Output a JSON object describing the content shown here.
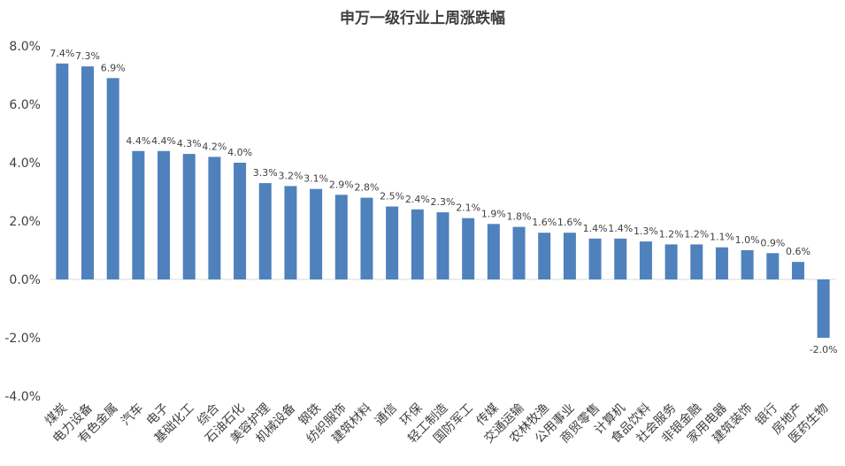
{
  "chart_data": {
    "type": "bar",
    "title": "申万一级行业上周涨跌幅",
    "xlabel": "",
    "ylabel": "",
    "ylim": [
      -4.0,
      8.0
    ],
    "y_ticks": [
      "8.0%",
      "6.0%",
      "4.0%",
      "2.0%",
      "0.0%",
      "-2.0%",
      "-4.0%"
    ],
    "y_tick_values": [
      8,
      6,
      4,
      2,
      0,
      -2,
      -4
    ],
    "grid": false,
    "legend": "none",
    "bar_color": "#4f81bd",
    "categories": [
      "煤炭",
      "电力设备",
      "有色金属",
      "汽车",
      "电子",
      "基础化工",
      "综合",
      "石油石化",
      "美容护理",
      "机械设备",
      "钢铁",
      "纺织服饰",
      "建筑材料",
      "通信",
      "环保",
      "轻工制造",
      "国防军工",
      "传媒",
      "交通运输",
      "农林牧渔",
      "公用事业",
      "商贸零售",
      "计算机",
      "食品饮料",
      "社会服务",
      "非银金融",
      "家用电器",
      "建筑装饰",
      "银行",
      "房地产",
      "医药生物"
    ],
    "values": [
      7.4,
      7.3,
      6.9,
      4.4,
      4.4,
      4.3,
      4.2,
      4.0,
      3.3,
      3.2,
      3.1,
      2.9,
      2.8,
      2.5,
      2.4,
      2.3,
      2.1,
      1.9,
      1.8,
      1.6,
      1.6,
      1.4,
      1.4,
      1.3,
      1.2,
      1.2,
      1.1,
      1.0,
      0.9,
      0.6,
      -2.0
    ],
    "data_labels": [
      "7.4%",
      "7.3%",
      "6.9%",
      "4.4%",
      "4.4%",
      "4.3%",
      "4.2%",
      "4.0%",
      "3.3%",
      "3.2%",
      "3.1%",
      "2.9%",
      "2.8%",
      "2.5%",
      "2.4%",
      "2.3%",
      "2.1%",
      "1.9%",
      "1.8%",
      "1.6%",
      "1.6%",
      "1.4%",
      "1.4%",
      "1.3%",
      "1.2%",
      "1.2%",
      "1.1%",
      "1.0%",
      "0.9%",
      "0.6%",
      "-2.0%"
    ]
  }
}
